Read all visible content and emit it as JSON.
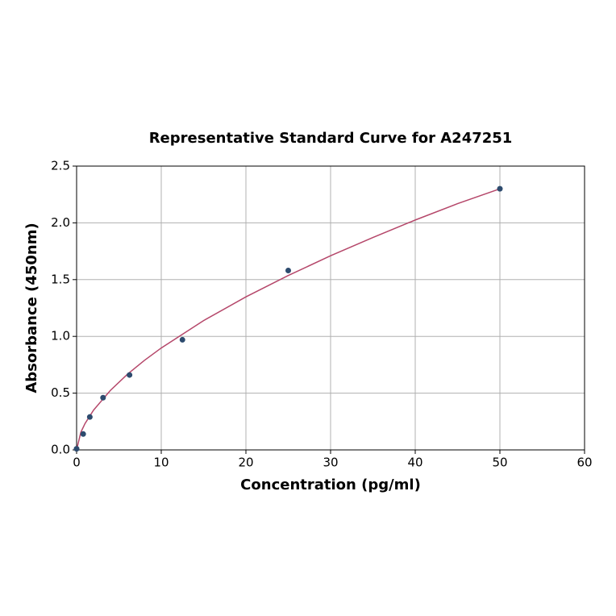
{
  "chart_data": {
    "type": "scatter",
    "title": "Representative Standard Curve for A247251",
    "x_label": "Concentration (pg/ml)",
    "y_label": "Absorbance (450nm)",
    "xlim": [
      0,
      60
    ],
    "ylim": [
      0,
      2.5
    ],
    "xticks": [
      0,
      10,
      20,
      30,
      40,
      50,
      60
    ],
    "yticks": [
      {
        "value": 0,
        "label": "0.0"
      },
      {
        "value": 0.5,
        "label": "0.5"
      },
      {
        "value": 1,
        "label": "1.0"
      },
      {
        "value": 1.5,
        "label": "1.5"
      },
      {
        "value": 2,
        "label": "2.0"
      },
      {
        "value": 2.5,
        "label": "2.5"
      }
    ],
    "grid": true,
    "points": {
      "color": "#2d4b6e",
      "x": [
        0,
        0.78,
        1.56,
        3.125,
        6.25,
        12.5,
        25,
        50
      ],
      "values": [
        0.01,
        0.14,
        0.29,
        0.46,
        0.66,
        0.97,
        1.58,
        2.3
      ]
    },
    "curve": {
      "color": "#b5476a",
      "x": [
        0,
        0.5,
        1,
        2,
        4,
        6,
        8,
        10,
        15,
        20,
        25,
        30,
        35,
        40,
        45,
        50
      ],
      "values": [
        0,
        0.155,
        0.233,
        0.35,
        0.525,
        0.666,
        0.788,
        0.898,
        1.139,
        1.348,
        1.536,
        1.71,
        1.871,
        2.025,
        2.169,
        2.3
      ]
    }
  }
}
